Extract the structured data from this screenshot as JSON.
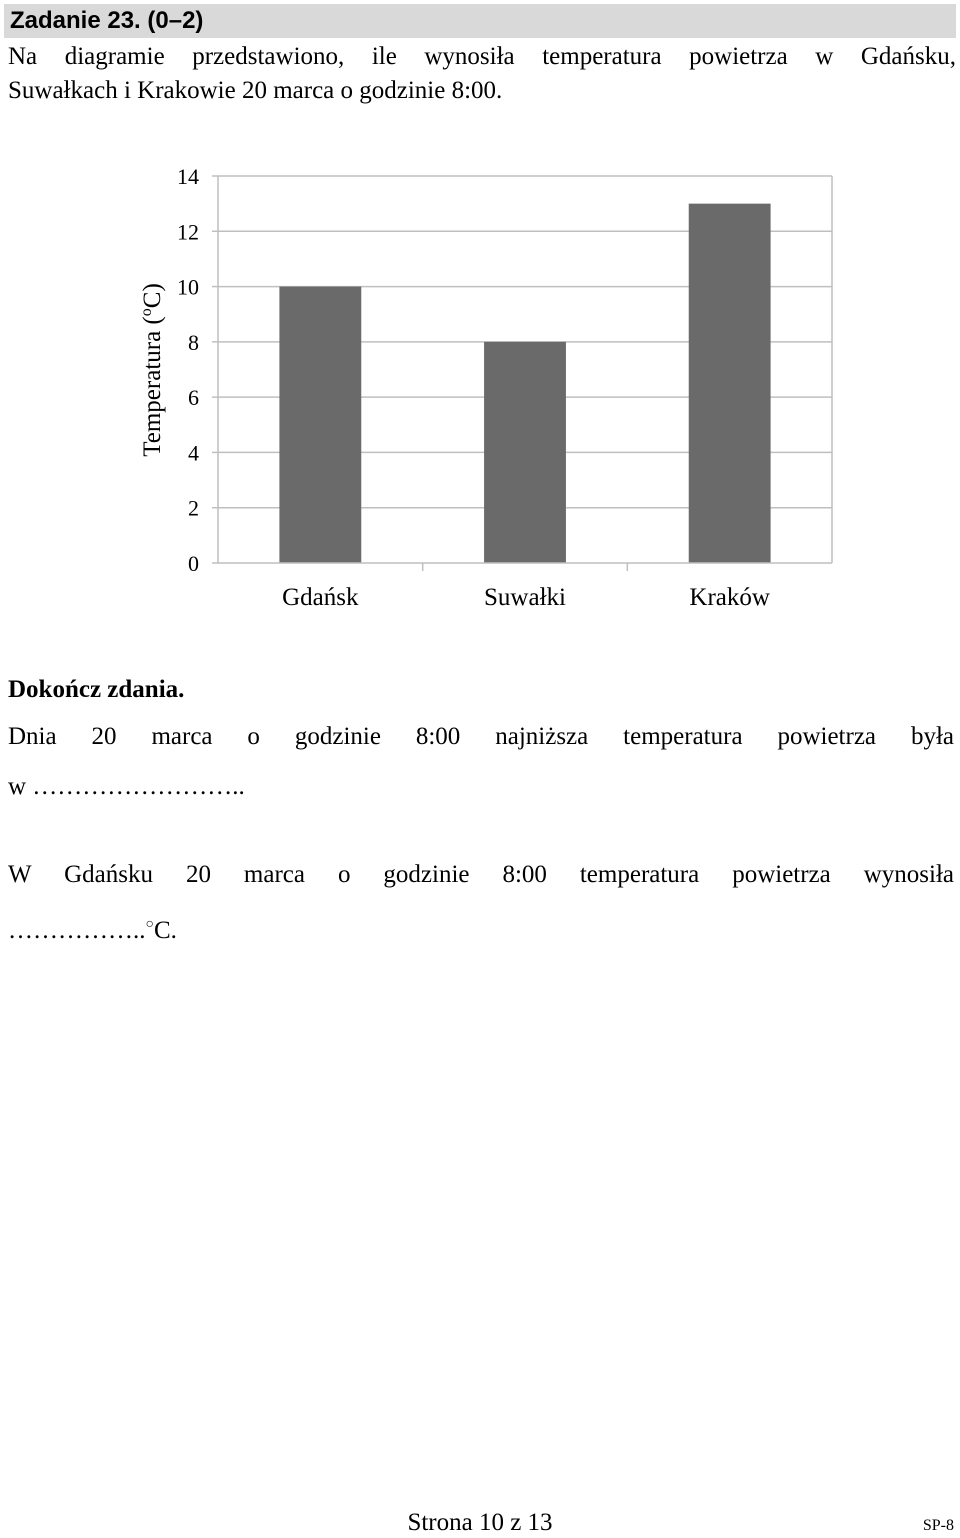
{
  "header": {
    "title": "Zadanie 23. (0–2)"
  },
  "intro": {
    "line1": "Na diagramie przedstawiono, ile wynosiła temperatura powietrza w Gdańsku,",
    "line2": "Suwałkach i Krakowie 20 marca o godzinie 8:00."
  },
  "chart_data": {
    "type": "bar",
    "categories": [
      "Gdańsk",
      "Suwałki",
      "Kraków"
    ],
    "values": [
      10,
      8,
      13
    ],
    "title": "",
    "xlabel": "",
    "ylabel": "Temperatura (°C)",
    "ylabel_prefix": "Temperatura (",
    "ylabel_degree": "o",
    "ylabel_unit": "C)",
    "ylim": [
      0,
      14
    ],
    "yticks": [
      0,
      2,
      4,
      6,
      8,
      10,
      12,
      14
    ],
    "grid": true,
    "legend": "none",
    "bar_color": "#6a6a6a",
    "grid_color": "#bfbfbf"
  },
  "task": {
    "instruction": "Dokończ zdania.",
    "sentence1_line1": "Dnia 20 marca o godzinie 8:00 najniższa temperatura powietrza była",
    "sentence1_line2": "w ……………………..",
    "sentence2_line1": "W Gdańsku 20 marca o godzinie 8:00 temperatura powietrza wynosiła",
    "sentence2_blank": "……………..",
    "sentence2_degree": "○",
    "sentence2_unit": "C."
  },
  "footer": {
    "page": "Strona 10 z 13",
    "code": "SP-8"
  }
}
